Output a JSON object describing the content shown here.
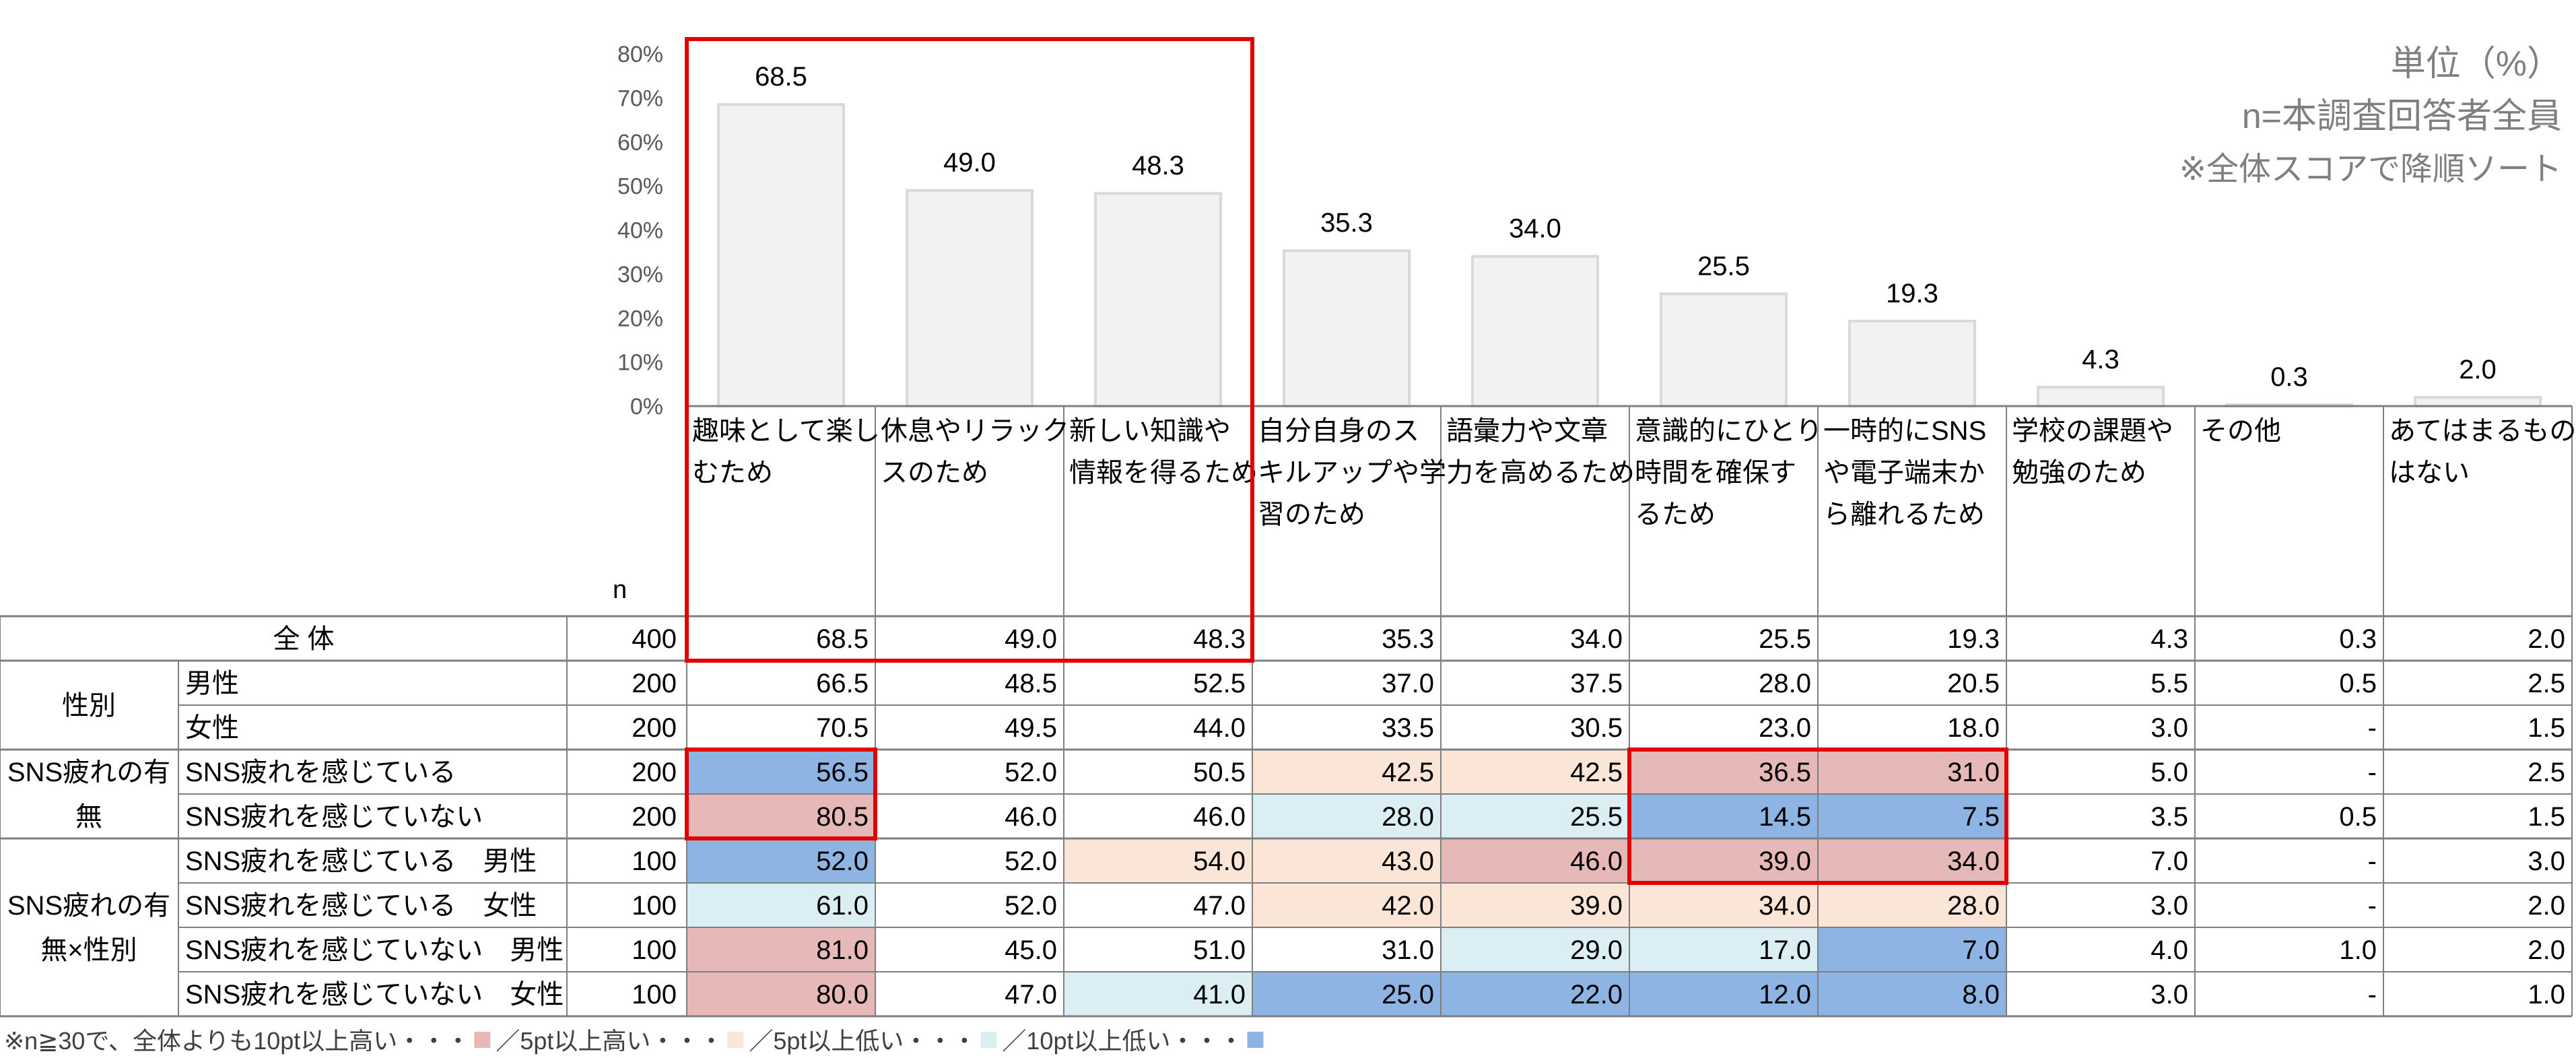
{
  "notes": {
    "unit": "単位（%）",
    "sample": "n=本調査回答者全員",
    "sort": "※全体スコアで降順ソート"
  },
  "legend": {
    "prefix": "※n≧30で、全体よりも10pt以上高い・・・",
    "sep1": "／5pt以上高い・・・",
    "sep2": "／5pt以上低い・・・",
    "sep3": "／10pt以上低い・・・"
  },
  "colors": {
    "bar": "#f2f2f2",
    "bar_stroke": "#d9d9d9",
    "high10": "#e6b9b8",
    "high5": "#fbe5d6",
    "low5": "#dbeef4",
    "low10": "#8eb4e3",
    "highlight": "#e00000",
    "grid": "#7f7f7f"
  },
  "chart_data": {
    "type": "bar",
    "yticks": [
      "0%",
      "10%",
      "20%",
      "30%",
      "40%",
      "50%",
      "60%",
      "70%",
      "80%"
    ],
    "ylim": [
      0,
      80
    ],
    "categories": [
      [
        "趣味として楽し",
        "むため"
      ],
      [
        "休息やリラック",
        "スのため"
      ],
      [
        "新しい知識や",
        "情報を得るため"
      ],
      [
        "自分自身のス",
        "キルアップや学",
        "習のため"
      ],
      [
        "語彙力や文章",
        "力を高めるため"
      ],
      [
        "意識的にひとり",
        "時間を確保す",
        "るため"
      ],
      [
        "一時的にSNS",
        "や電子端末か",
        "ら離れるため"
      ],
      [
        "学校の課題や",
        "勉強のため"
      ],
      [
        "その他"
      ],
      [
        "あてはまるもの",
        "はない"
      ]
    ],
    "values": [
      68.5,
      49.0,
      48.3,
      35.3,
      34.0,
      25.5,
      19.3,
      4.3,
      0.3,
      2.0
    ],
    "value_labels": [
      "68.5",
      "49.0",
      "48.3",
      "35.3",
      "34.0",
      "25.5",
      "19.3",
      "4.3",
      "0.3",
      "2.0"
    ],
    "n_header": "n",
    "rows": [
      {
        "group": "全 体",
        "label": "",
        "n": "400",
        "values": [
          "68.5",
          "49.0",
          "48.3",
          "35.3",
          "34.0",
          "25.5",
          "19.3",
          "4.3",
          "0.3",
          "2.0"
        ],
        "hl": [
          "",
          "",
          "",
          "",
          "",
          "",
          "",
          "",
          "",
          ""
        ]
      },
      {
        "group": "性別",
        "label": "男性",
        "n": "200",
        "values": [
          "66.5",
          "48.5",
          "52.5",
          "37.0",
          "37.5",
          "28.0",
          "20.5",
          "5.5",
          "0.5",
          "2.5"
        ],
        "hl": [
          "",
          "",
          "",
          "",
          "",
          "",
          "",
          "",
          "",
          ""
        ]
      },
      {
        "group": "",
        "label": "女性",
        "n": "200",
        "values": [
          "70.5",
          "49.5",
          "44.0",
          "33.5",
          "30.5",
          "23.0",
          "18.0",
          "3.0",
          "-",
          "1.5"
        ],
        "hl": [
          "",
          "",
          "",
          "",
          "",
          "",
          "",
          "",
          "",
          ""
        ]
      },
      {
        "group": [
          "SNS疲れの有",
          "無"
        ],
        "label": "SNS疲れを感じている",
        "n": "200",
        "values": [
          "56.5",
          "52.0",
          "50.5",
          "42.5",
          "42.5",
          "36.5",
          "31.0",
          "5.0",
          "-",
          "2.5"
        ],
        "hl": [
          "low10",
          "",
          "",
          "high5",
          "high5",
          "high10",
          "high10",
          "",
          "",
          ""
        ]
      },
      {
        "group": "",
        "label": "SNS疲れを感じていない",
        "n": "200",
        "values": [
          "80.5",
          "46.0",
          "46.0",
          "28.0",
          "25.5",
          "14.5",
          "7.5",
          "3.5",
          "0.5",
          "1.5"
        ],
        "hl": [
          "high10",
          "",
          "",
          "low5",
          "low5",
          "low10",
          "low10",
          "",
          "",
          ""
        ]
      },
      {
        "group": [
          "SNS疲れの有",
          "無×性別"
        ],
        "label": "SNS疲れを感じている　男性",
        "n": "100",
        "values": [
          "52.0",
          "52.0",
          "54.0",
          "43.0",
          "46.0",
          "39.0",
          "34.0",
          "7.0",
          "-",
          "3.0"
        ],
        "hl": [
          "low10",
          "",
          "high5",
          "high5",
          "high10",
          "high10",
          "high10",
          "",
          "",
          ""
        ]
      },
      {
        "group": "",
        "label": "SNS疲れを感じている　女性",
        "n": "100",
        "values": [
          "61.0",
          "52.0",
          "47.0",
          "42.0",
          "39.0",
          "34.0",
          "28.0",
          "3.0",
          "-",
          "2.0"
        ],
        "hl": [
          "low5",
          "",
          "",
          "high5",
          "high5",
          "high5",
          "high5",
          "",
          "",
          ""
        ]
      },
      {
        "group": "",
        "label": "SNS疲れを感じていない　男性",
        "n": "100",
        "values": [
          "81.0",
          "45.0",
          "51.0",
          "31.0",
          "29.0",
          "17.0",
          "7.0",
          "4.0",
          "1.0",
          "2.0"
        ],
        "hl": [
          "high10",
          "",
          "",
          "",
          "low5",
          "low5",
          "low10",
          "",
          "",
          ""
        ]
      },
      {
        "group": "",
        "label": "SNS疲れを感じていない　女性",
        "n": "100",
        "values": [
          "80.0",
          "47.0",
          "41.0",
          "25.0",
          "22.0",
          "12.0",
          "8.0",
          "3.0",
          "-",
          "1.0"
        ],
        "hl": [
          "high10",
          "",
          "low5",
          "low10",
          "low10",
          "low10",
          "low10",
          "",
          "",
          ""
        ]
      }
    ]
  }
}
